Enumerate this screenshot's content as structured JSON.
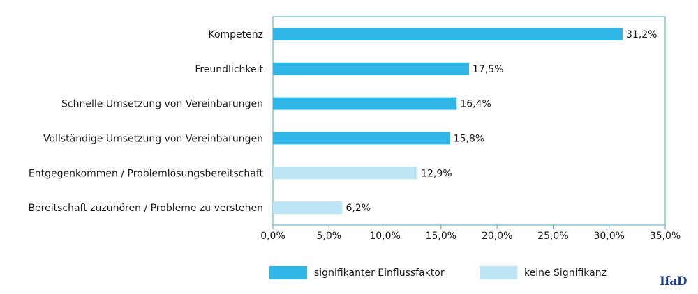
{
  "chart_data": {
    "type": "bar",
    "orientation": "horizontal",
    "categories": [
      "Kompetenz",
      "Freundlichkeit",
      "Schnelle Umsetzung von Vereinbarungen",
      "Vollständige Umsetzung von Vereinbarungen",
      "Entgegenkommen / Problemlösungsbereitschaft",
      "Bereitschaft zuzuhören / Probleme zu verstehen"
    ],
    "values": [
      31.2,
      17.5,
      16.4,
      15.8,
      12.9,
      6.2
    ],
    "value_labels": [
      "31,2%",
      "17,5%",
      "16,4%",
      "15,8%",
      "12,9%",
      "6,2%"
    ],
    "significant": [
      true,
      true,
      true,
      true,
      false,
      false
    ],
    "xlim": [
      0,
      35
    ],
    "xticks": [
      0,
      5,
      10,
      15,
      20,
      25,
      30,
      35
    ],
    "xtick_labels": [
      "0,0%",
      "5,0%",
      "10,0%",
      "15,0%",
      "20,0%",
      "25,0%",
      "30,0%",
      "35,0%"
    ],
    "grid": false,
    "legend_position": "bottom",
    "colors": {
      "significant": "#2fb6e6",
      "not_significant": "#bce6f5",
      "frame": "#4aa9c4"
    }
  },
  "legend": {
    "significant_label": "signifikanter Einflussfaktor",
    "not_significant_label": "keine Signifikanz"
  },
  "logo_text": "IfaD"
}
